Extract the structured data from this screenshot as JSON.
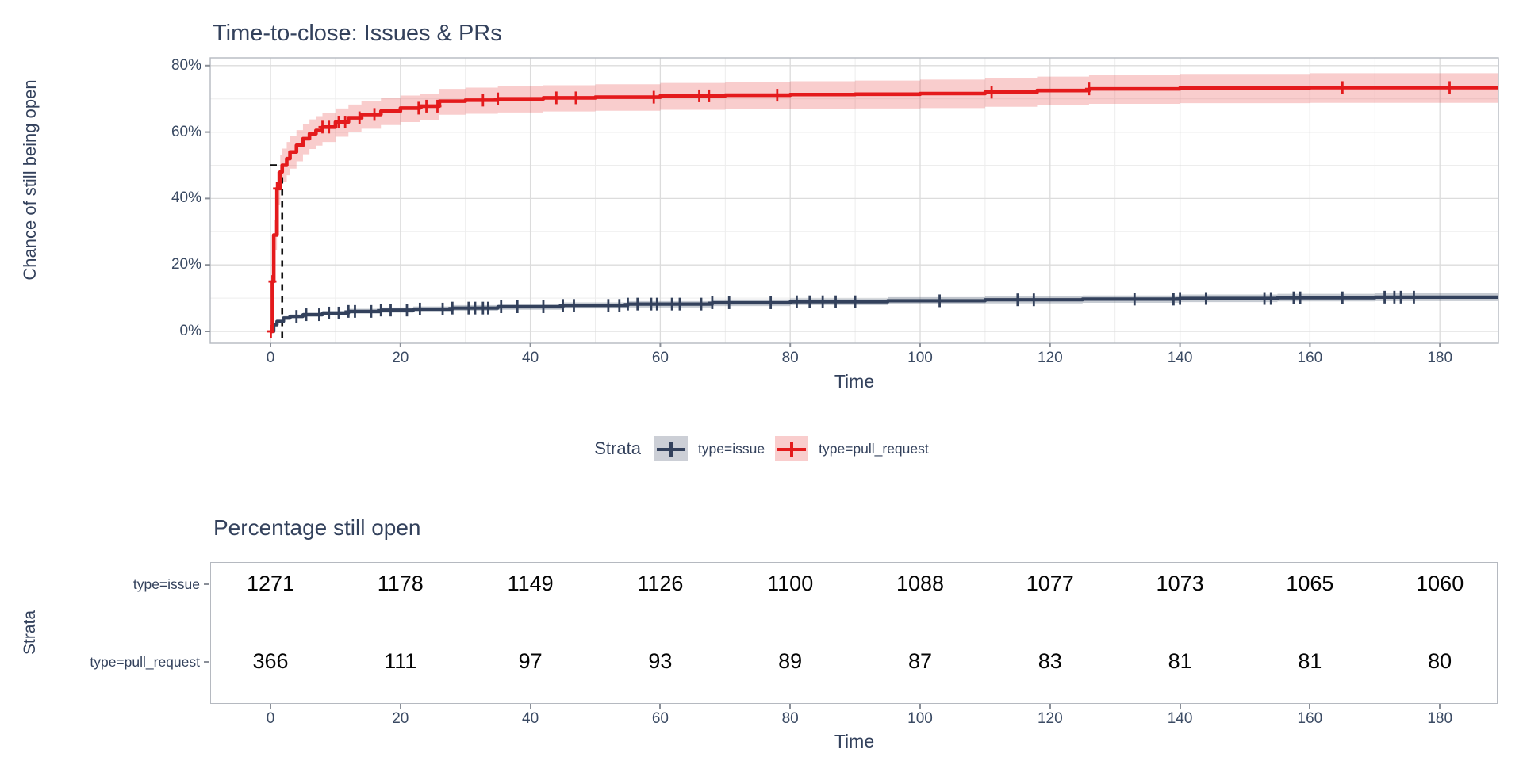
{
  "chart_data": [
    {
      "type": "line",
      "subtype": "kaplan-meier-step",
      "title": "Time-to-close: Issues & PRs",
      "xlabel": "Time",
      "ylabel": "Chance of still being open",
      "xlim": [
        -9.3,
        189
      ],
      "ylim_pct": [
        -3.6,
        82.4
      ],
      "x_ticks": [
        0,
        20,
        40,
        60,
        80,
        100,
        120,
        140,
        160,
        180
      ],
      "y_ticks_pct": [
        0,
        20,
        40,
        60,
        80
      ],
      "y_tick_labels": [
        "0%",
        "20%",
        "40%",
        "60%",
        "80%"
      ],
      "grid": true,
      "legend": {
        "title": "Strata",
        "position": "bottom",
        "entries": [
          {
            "label": "type=issue",
            "color": "#33415C",
            "key_bg": "rgba(51,65,92,0.25)"
          },
          {
            "label": "type=pull_request",
            "color": "#E41A1C",
            "key_bg": "rgba(228,26,28,0.22)"
          }
        ]
      },
      "median_line": {
        "time": 1.8,
        "pct": 50,
        "style": "dashed",
        "color": "#111111"
      },
      "series": [
        {
          "name": "type=issue",
          "color": "#33415C",
          "band_color": "rgba(70,85,110,0.30)",
          "points_t_pct_lo_hi": [
            [
              0,
              0,
              0,
              0
            ],
            [
              0.5,
              2,
              1.7,
              2.4
            ],
            [
              1,
              3,
              2.6,
              3.5
            ],
            [
              2,
              4,
              3.5,
              4.6
            ],
            [
              3,
              4.5,
              3.9,
              5.1
            ],
            [
              5,
              5,
              4.4,
              5.7
            ],
            [
              8,
              5.5,
              4.8,
              6.2
            ],
            [
              12,
              6,
              5.3,
              6.8
            ],
            [
              17,
              6.4,
              5.6,
              7.2
            ],
            [
              22,
              6.7,
              5.9,
              7.5
            ],
            [
              28,
              7,
              6.2,
              7.9
            ],
            [
              35,
              7.4,
              6.5,
              8.3
            ],
            [
              45,
              7.8,
              6.9,
              8.7
            ],
            [
              55,
              8.2,
              7.2,
              9.1
            ],
            [
              68,
              8.6,
              7.6,
              9.6
            ],
            [
              80,
              8.9,
              7.9,
              9.9
            ],
            [
              95,
              9.2,
              8.1,
              10.3
            ],
            [
              110,
              9.5,
              8.4,
              10.6
            ],
            [
              125,
              9.7,
              8.6,
              10.8
            ],
            [
              140,
              9.9,
              8.8,
              11.1
            ],
            [
              155,
              10.1,
              9.0,
              11.3
            ],
            [
              170,
              10.3,
              9.1,
              11.5
            ],
            [
              189,
              10.4,
              9.2,
              11.6
            ]
          ],
          "censor_times": [
            4,
            5.5,
            7.5,
            9,
            10.5,
            12,
            13,
            15.5,
            17,
            18.5,
            21,
            23,
            26.5,
            28,
            30.5,
            31.5,
            32.7,
            33.5,
            35.5,
            38,
            42,
            45,
            46.7,
            52,
            53.7,
            55,
            56.5,
            58.6,
            59.5,
            61.8,
            63,
            66.3,
            68,
            70.6,
            77,
            81,
            83,
            85,
            87,
            90,
            103,
            115,
            117.5,
            133,
            139,
            140,
            144,
            153,
            154,
            157.5,
            158.5,
            165,
            171.5,
            173,
            174,
            176
          ]
        },
        {
          "name": "type=pull_request",
          "color": "#E41A1C",
          "band_color": "rgba(228,26,28,0.22)",
          "points_t_pct_lo_hi": [
            [
              0,
              0,
              0,
              0
            ],
            [
              0.3,
              15,
              12,
              18
            ],
            [
              0.5,
              29,
              24.5,
              33.5
            ],
            [
              1,
              43,
              38,
              48
            ],
            [
              1.5,
              48,
              43,
              53
            ],
            [
              1.8,
              50,
              45,
              55
            ],
            [
              2.5,
              52,
              47,
              57
            ],
            [
              3,
              54,
              49,
              58.8
            ],
            [
              4,
              56,
              51.2,
              60.6
            ],
            [
              5,
              58,
              53.3,
              62.4
            ],
            [
              6,
              59.5,
              54.9,
              63.8
            ],
            [
              7,
              60.5,
              55.9,
              64.8
            ],
            [
              8,
              61.5,
              57,
              65.7
            ],
            [
              10,
              63,
              58.6,
              67.1
            ],
            [
              12,
              64.3,
              60,
              68.3
            ],
            [
              14,
              65.3,
              61,
              69.2
            ],
            [
              17,
              66.3,
              62.1,
              70.2
            ],
            [
              20,
              67.2,
              63,
              71
            ],
            [
              23,
              67.8,
              63.7,
              71.6
            ],
            [
              26,
              69.3,
              65.2,
              73
            ],
            [
              30,
              69.6,
              65.5,
              73.4
            ],
            [
              35,
              70,
              65.9,
              73.8
            ],
            [
              42,
              70.3,
              66.2,
              74.1
            ],
            [
              50,
              70.5,
              66.4,
              74.4
            ],
            [
              60,
              70.9,
              66.7,
              74.8
            ],
            [
              70,
              71.1,
              66.9,
              75.1
            ],
            [
              80,
              71.3,
              67,
              75.3
            ],
            [
              90,
              71.4,
              67.1,
              75.5
            ],
            [
              100,
              71.6,
              67.2,
              75.8
            ],
            [
              110,
              72,
              67.6,
              76.2
            ],
            [
              118,
              72.5,
              68.1,
              76.7
            ],
            [
              126,
              73,
              68.5,
              77.2
            ],
            [
              140,
              73.3,
              68.7,
              77.5
            ],
            [
              160,
              73.4,
              68.8,
              77.7
            ],
            [
              189,
              73.5,
              68.9,
              77.8
            ]
          ],
          "censor_times": [
            0.05,
            0.3,
            1,
            8,
            9,
            10.5,
            11.5,
            13.7,
            16,
            22.8,
            24,
            25.7,
            32.7,
            35,
            44,
            47,
            59,
            66,
            67.5,
            78,
            111,
            126,
            165,
            181.5
          ]
        }
      ]
    },
    {
      "type": "table",
      "title": "Percentage still open",
      "xlabel": "Time",
      "ylabel": "Strata",
      "x_ticks": [
        0,
        20,
        40,
        60,
        80,
        100,
        120,
        140,
        160,
        180
      ],
      "rows": [
        {
          "label": "type=issue",
          "values": [
            1271,
            1178,
            1149,
            1126,
            1100,
            1088,
            1077,
            1073,
            1065,
            1060
          ]
        },
        {
          "label": "type=pull_request",
          "values": [
            366,
            111,
            97,
            93,
            89,
            87,
            83,
            81,
            81,
            80
          ]
        }
      ]
    }
  ],
  "colors": {
    "text": "#33415C",
    "tick_text": "#3A4A63",
    "risk_numbers": "#050505",
    "grid_major": "#DCDCDC",
    "grid_minor": "#EDEDED",
    "panel_border": "#B5B9C0",
    "issue_red": "#E41A1C",
    "issue_navy": "#33415C"
  }
}
